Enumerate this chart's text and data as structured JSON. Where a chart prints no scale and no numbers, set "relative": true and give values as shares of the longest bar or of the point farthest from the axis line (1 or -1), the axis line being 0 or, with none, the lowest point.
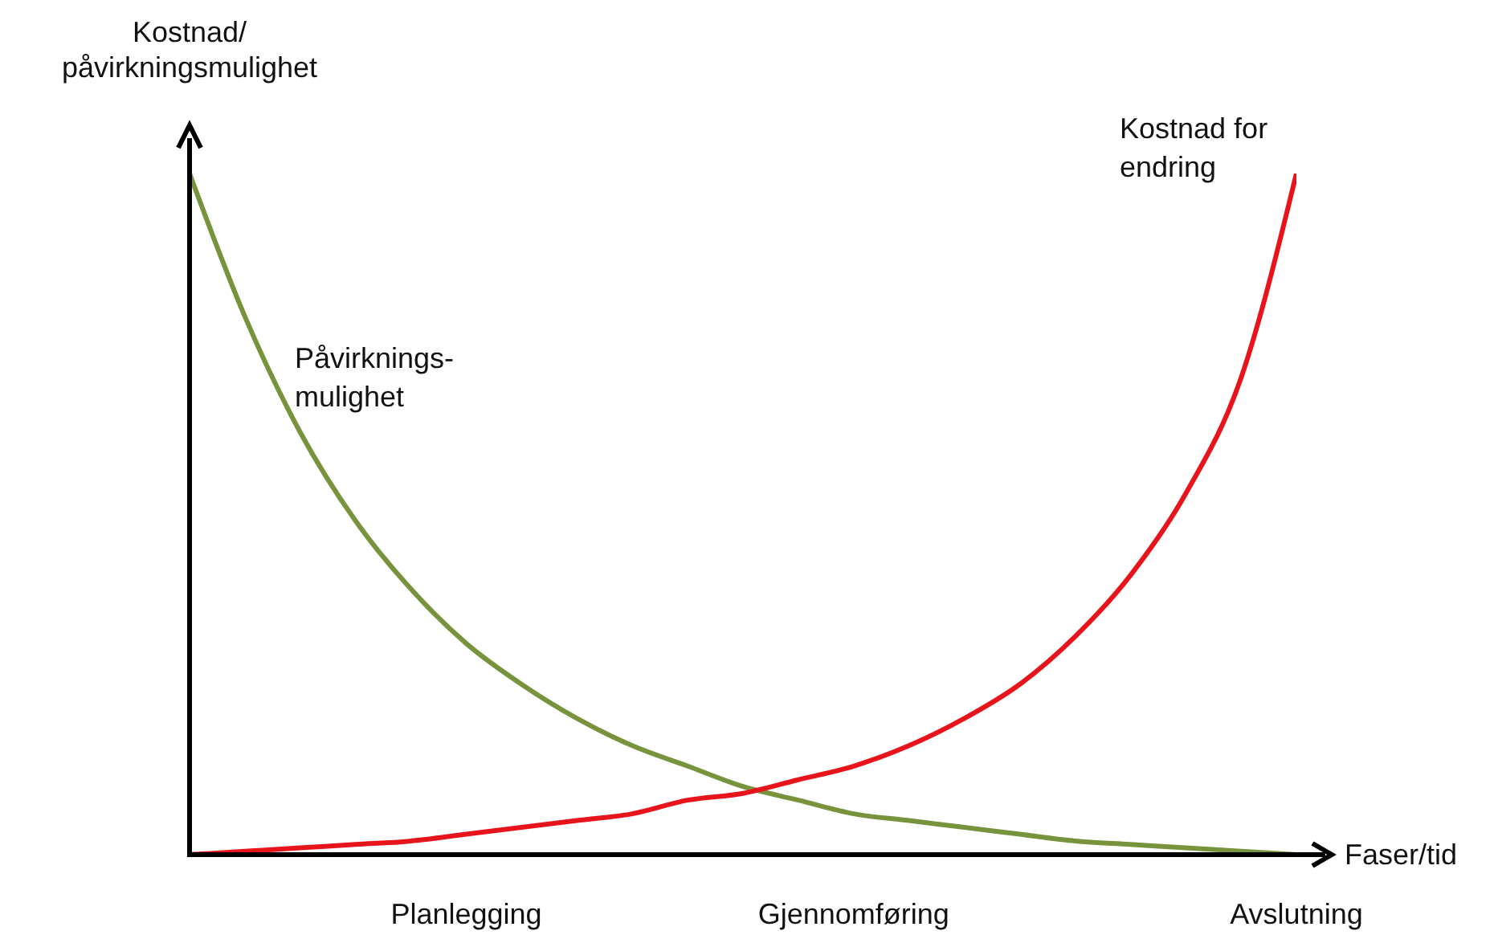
{
  "chart_data": {
    "type": "line",
    "relative": true,
    "xlabel": "Faser/tid",
    "ylabel": "Kostnad/påvirkningsmulighet",
    "categories": [
      null,
      null,
      null,
      null,
      null,
      "Planlegging",
      null,
      null,
      null,
      null,
      null,
      null,
      "Gjennomføring",
      null,
      null,
      null,
      null,
      null,
      null,
      null,
      "Avslutning"
    ],
    "series": [
      {
        "name": "Påvirknings-mulighet",
        "color": "#77933c",
        "values": [
          1,
          0.79,
          0.62,
          0.49,
          0.39,
          0.31,
          0.25,
          0.2,
          0.16,
          0.13,
          0.1,
          0.08,
          0.06,
          0.05,
          0.04,
          0.03,
          0.02,
          0.015,
          0.01,
          0.005,
          0
        ]
      },
      {
        "name": "Kostnad for endring",
        "color": "#e8141b",
        "values": [
          0,
          0.005,
          0.01,
          0.015,
          0.02,
          0.03,
          0.04,
          0.05,
          0.06,
          0.08,
          0.09,
          0.11,
          0.13,
          0.16,
          0.2,
          0.25,
          0.32,
          0.41,
          0.53,
          0.7,
          1
        ]
      }
    ],
    "grid": false,
    "legend": false,
    "marker": "none",
    "line_style": "solid"
  }
}
